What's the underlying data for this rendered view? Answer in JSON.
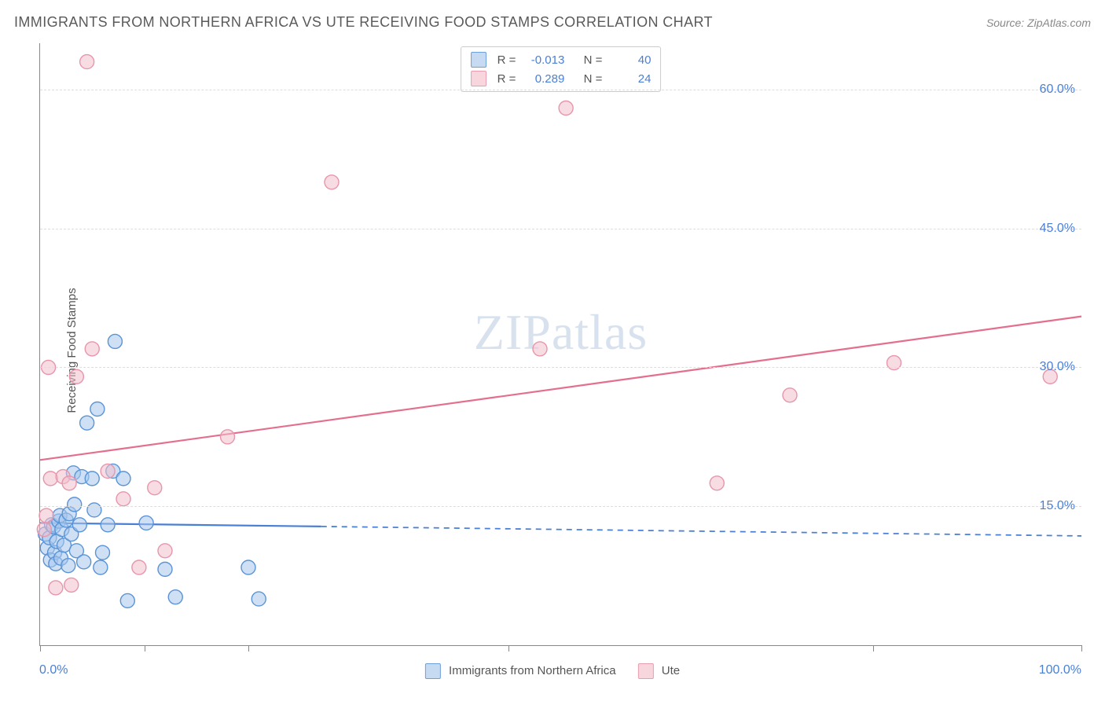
{
  "title": "IMMIGRANTS FROM NORTHERN AFRICA VS UTE RECEIVING FOOD STAMPS CORRELATION CHART",
  "source_label": "Source:",
  "source_name": "ZipAtlas.com",
  "watermark": {
    "bold": "ZIP",
    "light": "atlas"
  },
  "y_axis_label": "Receiving Food Stamps",
  "chart": {
    "type": "scatter",
    "xlim": [
      0,
      100
    ],
    "ylim": [
      0,
      65
    ],
    "x_tick_positions": [
      0,
      10,
      20,
      45,
      80,
      100
    ],
    "x_label_min": "0.0%",
    "x_label_max": "100.0%",
    "y_ticks": [
      {
        "v": 15,
        "label": "15.0%"
      },
      {
        "v": 30,
        "label": "30.0%"
      },
      {
        "v": 45,
        "label": "45.0%"
      },
      {
        "v": 60,
        "label": "60.0%"
      }
    ],
    "background_color": "#ffffff",
    "grid_color": "#dddddd",
    "axis_color": "#888888",
    "label_color": "#4a7fd6",
    "marker_radius": 9,
    "marker_stroke_width": 1.4,
    "trend_line_width": 2.2
  },
  "series": [
    {
      "id": "naf",
      "name": "Immigrants from Northern Africa",
      "fill": "#a8c6ec",
      "fill_opacity": 0.55,
      "stroke": "#5a94d6",
      "swatch_fill": "#c6daf2",
      "swatch_stroke": "#6d9fdb",
      "R": "-0.013",
      "N": "40",
      "trend": {
        "y_at_x0": 13.2,
        "y_at_x100": 11.8,
        "solid_until_x": 27,
        "color": "#4a7fd6"
      },
      "points": [
        [
          0.5,
          12.0
        ],
        [
          0.7,
          10.5
        ],
        [
          0.9,
          11.6
        ],
        [
          1.0,
          9.2
        ],
        [
          1.1,
          13.0
        ],
        [
          1.3,
          12.8
        ],
        [
          1.4,
          10.0
        ],
        [
          1.5,
          8.8
        ],
        [
          1.6,
          11.2
        ],
        [
          1.8,
          13.4
        ],
        [
          1.9,
          14.0
        ],
        [
          2.0,
          9.4
        ],
        [
          2.1,
          12.5
        ],
        [
          2.3,
          10.8
        ],
        [
          2.5,
          13.5
        ],
        [
          2.7,
          8.6
        ],
        [
          2.8,
          14.2
        ],
        [
          3.0,
          12.0
        ],
        [
          3.2,
          18.6
        ],
        [
          3.3,
          15.2
        ],
        [
          3.5,
          10.2
        ],
        [
          3.8,
          13.0
        ],
        [
          4.0,
          18.2
        ],
        [
          4.2,
          9.0
        ],
        [
          4.5,
          24.0
        ],
        [
          5.0,
          18.0
        ],
        [
          5.2,
          14.6
        ],
        [
          5.5,
          25.5
        ],
        [
          5.8,
          8.4
        ],
        [
          6.0,
          10.0
        ],
        [
          6.5,
          13.0
        ],
        [
          7.0,
          18.8
        ],
        [
          7.2,
          32.8
        ],
        [
          8.0,
          18.0
        ],
        [
          8.4,
          4.8
        ],
        [
          10.2,
          13.2
        ],
        [
          12.0,
          8.2
        ],
        [
          13.0,
          5.2
        ],
        [
          20.0,
          8.4
        ],
        [
          21.0,
          5.0
        ]
      ]
    },
    {
      "id": "ute",
      "name": "Ute",
      "fill": "#f3c0cc",
      "fill_opacity": 0.55,
      "stroke": "#e895ab",
      "swatch_fill": "#f7d6de",
      "swatch_stroke": "#e99db1",
      "R": "0.289",
      "N": "24",
      "trend": {
        "y_at_x0": 20.0,
        "y_at_x100": 35.5,
        "solid_until_x": 100,
        "color": "#e46f8d"
      },
      "points": [
        [
          0.4,
          12.5
        ],
        [
          0.6,
          14.0
        ],
        [
          0.8,
          30.0
        ],
        [
          1.0,
          18.0
        ],
        [
          1.5,
          6.2
        ],
        [
          2.2,
          18.2
        ],
        [
          2.8,
          17.5
        ],
        [
          3.0,
          6.5
        ],
        [
          3.5,
          29.0
        ],
        [
          4.5,
          63.0
        ],
        [
          5.0,
          32.0
        ],
        [
          6.5,
          18.8
        ],
        [
          8.0,
          15.8
        ],
        [
          9.5,
          8.4
        ],
        [
          11.0,
          17.0
        ],
        [
          12.0,
          10.2
        ],
        [
          18.0,
          22.5
        ],
        [
          28.0,
          50.0
        ],
        [
          48.0,
          32.0
        ],
        [
          50.5,
          58.0
        ],
        [
          65.0,
          17.5
        ],
        [
          72.0,
          27.0
        ],
        [
          82.0,
          30.5
        ],
        [
          97.0,
          29.0
        ]
      ]
    }
  ],
  "top_legend_labels": {
    "R": "R =",
    "N": "N ="
  }
}
